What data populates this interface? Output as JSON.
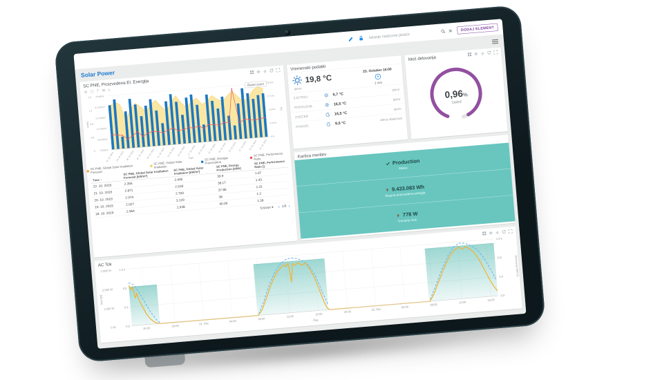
{
  "topbar": {
    "search_placeholder": "Iskanje nadzorne plošče",
    "add_button": "DODAJ ELEMENT"
  },
  "dashboard": {
    "title": "Solar Power"
  },
  "energy_panel": {
    "title": "SC PNE, Proizvedena El. Energija",
    "reset_zoom": "Reset zoom",
    "legend": [
      {
        "label": "SC PNE, Global Solar Irradiation Forecast",
        "color": "#f3a43b"
      },
      {
        "label": "SC PNE, Global Solar Irradiation",
        "color": "#f2cd62"
      },
      {
        "label": "SC PNE, Energija Proizvedena",
        "color": "#1d78c1"
      },
      {
        "label": "SC PNE, Performance Ratio",
        "color": "#e8555a"
      }
    ],
    "table": {
      "columns": [
        "Time ↑",
        "SC PNE, Global Solar Irradiation Forecast [kW/m²]",
        "SC PNE, Global Solar Irradiation [kW/m²]",
        "SC PNE, Energy Production [kWh]",
        "SC PNE, Performance Ratio []"
      ],
      "rows": [
        [
          "22. 10. 2019",
          "2.355",
          "2.405",
          "39.9",
          "1.07"
        ],
        [
          "21. 10. 2019",
          "2.871",
          "2.918",
          "38.17",
          "1.43"
        ],
        [
          "20. 10. 2019",
          "2.974",
          "2.709",
          "37.86",
          "1.31"
        ],
        [
          "19. 10. 2019",
          "2.027",
          "3.129",
          "38",
          "1.2"
        ],
        [
          "18. 10. 2019",
          "2.964",
          "1.938",
          "40.09",
          "1.36"
        ]
      ],
      "page_size": "5/stran",
      "page": "1/6"
    }
  },
  "weather_panel": {
    "title": "Vremenski podatki",
    "current": {
      "temp": "19,8 °C",
      "condition": "jasno",
      "datetime": "23. October 16:00",
      "wind": "1 m/s"
    },
    "forecast": [
      {
        "label": "ZJUTRAJ",
        "icon": "sun",
        "temp": "6,7 °C",
        "condition": "jasno"
      },
      {
        "label": "POPOLDNE",
        "icon": "sun",
        "temp": "16,5 °C",
        "condition": "jasno"
      },
      {
        "label": "ZVEČER",
        "icon": "moon",
        "temp": "16,5 °C",
        "condition": "jasno"
      },
      {
        "label": "PONOČI",
        "icon": "moon",
        "temp": "9,5 °C",
        "condition": "delna oblačnost"
      }
    ]
  },
  "gauge_panel": {
    "title": "Moč delovanja",
    "value": "0,96",
    "unit": "%",
    "label": "Delež",
    "color": "#92509f"
  },
  "stats_panel": {
    "title": "Kartica meritev",
    "bg": "#68c6bf",
    "items": [
      {
        "icon": "check",
        "value": "Production",
        "sub": "Status"
      },
      {
        "icon": "flash",
        "value": "9.433.083 Wh",
        "sub": "Skupna proizvedena energija"
      },
      {
        "icon": "flash",
        "value": "778 W",
        "sub": "Trenutna moč"
      }
    ]
  },
  "ac_panel": {
    "title": "AC Tok"
  },
  "chart_data": [
    {
      "type": "bar",
      "title": "SC PNE, Proizvedena El. Energija",
      "xlabel": "Čas",
      "categories": [
        "01. 10. 2019",
        "02. 10. 2019",
        "03. 10. 2019",
        "04. 10. 2019",
        "05. 10. 2019",
        "06. 10. 2019",
        "07. 10. 2019",
        "08. 10. 2019",
        "09. 10. 2019",
        "10. 10. 2019",
        "11. 10. 2019",
        "12. 10. 2019",
        "13. 10. 2019",
        "14. 10. 2019",
        "15. 10. 2019",
        "16. 10. 2019",
        "17. 10. 2019",
        "18. 10. 2019",
        "19. 10. 2019",
        "20. 10. 2019",
        "21. 10. 2019",
        "22. 10. 2019",
        "23. 10. 2019",
        "24. 10. 2019",
        "25. 10. 2019",
        "26. 10. 2019",
        "27. 10. 2019",
        "28. 10. 2019",
        "29. 10. 2019",
        "30. 10. 2019",
        "31. 10. 2019"
      ],
      "series": [
        {
          "name": "SC PNE, Global Solar Irradiation",
          "type": "area",
          "unit": "kW/m²",
          "color": "#f2cd62",
          "values": [
            3.2,
            3.5,
            3.3,
            2.1,
            2.9,
            3.3,
            3.0,
            2.6,
            3.1,
            3.4,
            2.9,
            2.5,
            3.2,
            3.6,
            3.0,
            2.7,
            3.1,
            3.3,
            2.8,
            3.0,
            3.4,
            3.1,
            2.9,
            3.3,
            3.6,
            3.2,
            2.8,
            3.0,
            3.5,
            3.8,
            3.6
          ]
        },
        {
          "name": "SC PNE, Energija Proizvedena",
          "type": "bar",
          "unit": "kWh",
          "color": "#1d78c1",
          "values": [
            1.32,
            1.48,
            0.36,
            1.1,
            1.46,
            1.28,
            0.92,
            1.22,
            1.4,
            1.05,
            0.66,
            1.3,
            1.5,
            1.26,
            0.86,
            1.36,
            1.44,
            1.12,
            0.52,
            1.4,
            1.2,
            0.96,
            1.3,
            0.72,
            0.42,
            1.06,
            1.5,
            1.34,
            1.16,
            1.26,
            1.3
          ]
        },
        {
          "name": "SC PNE, Performance Ratio",
          "type": "line",
          "unit": "",
          "color": "#e8555a",
          "values": [
            1.0,
            0.95,
            0.9,
            0.62,
            0.8,
            1.05,
            0.72,
            0.9,
            1.0,
            0.95,
            0.85,
            1.0,
            1.1,
            0.9,
            0.95,
            1.05,
            1.0,
            1.1,
            0.92,
            1.15,
            1.1,
            1.05,
            1.2,
            1.15,
            3.4,
            1.1,
            1.3,
            1.25,
            1.2,
            1.25,
            1.3
          ]
        }
      ],
      "axes": {
        "kwh": {
          "label": "[kWh]",
          "max": 1.6,
          "ticks": [
            "0",
            "0.4",
            "0.8",
            "1.2",
            "1.6"
          ]
        },
        "irr": {
          "label": "[kW/m²]",
          "max": 4,
          "ticks": [
            "0 kW/m²",
            "0.8 kW/m²",
            "1.6 kW/m²",
            "2.4 kW/m²",
            "3.2 kW/m²",
            "4 kW/m²"
          ]
        },
        "ratio": {
          "label": "[%]",
          "max": 3.6,
          "ticks": [
            "0 %",
            "0.9 k%",
            "1.8 k%",
            "2.7 k%",
            "3.6 k%"
          ]
        }
      }
    },
    {
      "type": "line",
      "title": "AC Tok",
      "xlabel": "Čas",
      "t_max": 51,
      "w_max": 3000,
      "x_ticks": [
        {
          "t": 2,
          "label": "16:00"
        },
        {
          "t": 6,
          "label": "20:00"
        },
        {
          "t": 10,
          "label": "21. Dec"
        },
        {
          "t": 14,
          "label": "04:00"
        },
        {
          "t": 18,
          "label": "08:00"
        },
        {
          "t": 22,
          "label": "12:00"
        },
        {
          "t": 26,
          "label": "16:00"
        },
        {
          "t": 30,
          "label": "20:00"
        },
        {
          "t": 34,
          "label": "22. Dec"
        },
        {
          "t": 38,
          "label": "04:00"
        },
        {
          "t": 42,
          "label": "08:00"
        },
        {
          "t": 46,
          "label": "12:00"
        },
        {
          "t": 50,
          "label": "16:00"
        }
      ],
      "axes": {
        "left_w": {
          "label": "Moč [W]",
          "ticks": [
            {
              "v": 0,
              "label": "0 W"
            },
            {
              "v": 1000,
              "label": "1.000 W"
            },
            {
              "v": 2000,
              "label": "2.000 W"
            },
            {
              "v": 3000,
              "label": "3.000 W"
            }
          ]
        },
        "left_k": {
          "label": "",
          "ticks": [
            {
              "v": 0,
              "label": "0,0"
            },
            {
              "v": 1000,
              "label": "0,4"
            },
            {
              "v": 2000,
              "label": "0,8"
            },
            {
              "v": 3000,
              "label": "1,2 k"
            }
          ]
        },
        "right": {
          "label": "Obsevanje [W/m²]",
          "ticks": [
            {
              "v": 0,
              "label": "0,0"
            },
            {
              "v": 1000,
              "label": "0,4"
            },
            {
              "v": 2000,
              "label": "0,8"
            },
            {
              "v": 3000,
              "label": "1,2 k"
            }
          ]
        }
      },
      "day_blocks": [
        {
          "from": 0,
          "to": 3.9,
          "top": 2050
        },
        {
          "from": 17.5,
          "to": 27.4,
          "top": 2700
        },
        {
          "from": 41.4,
          "to": 51,
          "top": 2780
        }
      ],
      "power": [
        [
          0,
          2150
        ],
        [
          0.25,
          1900
        ],
        [
          0.5,
          2050
        ],
        [
          0.8,
          1450
        ],
        [
          1.05,
          1700
        ],
        [
          1.3,
          1300
        ],
        [
          1.7,
          950
        ],
        [
          2.1,
          600
        ],
        [
          2.5,
          350
        ],
        [
          3,
          150
        ],
        [
          3.5,
          40
        ],
        [
          3.9,
          0
        ],
        [
          17.6,
          0
        ],
        [
          18.2,
          280
        ],
        [
          18.9,
          850
        ],
        [
          19.7,
          1550
        ],
        [
          20.5,
          2100
        ],
        [
          21.2,
          2400
        ],
        [
          21.7,
          2550
        ],
        [
          22,
          2450
        ],
        [
          22.3,
          2620
        ],
        [
          22.6,
          1600
        ],
        [
          22.9,
          2580
        ],
        [
          23.3,
          2480
        ],
        [
          23.7,
          2600
        ],
        [
          24.2,
          2450
        ],
        [
          24.7,
          2550
        ],
        [
          25.2,
          2250
        ],
        [
          25.8,
          1750
        ],
        [
          26.3,
          1150
        ],
        [
          26.8,
          500
        ],
        [
          27.2,
          120
        ],
        [
          27.5,
          0
        ],
        [
          41.5,
          0
        ],
        [
          42.1,
          320
        ],
        [
          42.9,
          950
        ],
        [
          43.8,
          1650
        ],
        [
          44.7,
          2250
        ],
        [
          45.5,
          2600
        ],
        [
          46.1,
          2720
        ],
        [
          46.6,
          2600
        ],
        [
          47,
          2720
        ],
        [
          47.5,
          2620
        ],
        [
          48.1,
          2420
        ],
        [
          48.7,
          2050
        ],
        [
          49.3,
          1550
        ],
        [
          49.9,
          1000
        ],
        [
          50.5,
          550
        ],
        [
          51,
          260
        ]
      ],
      "irradiance_segments": [
        [
          [
            0,
            2280
          ],
          [
            0.7,
            2150
          ],
          [
            1.4,
            1700
          ],
          [
            2.1,
            1150
          ],
          [
            2.8,
            600
          ],
          [
            3.5,
            200
          ],
          [
            3.9,
            50
          ]
        ],
        [
          [
            17.7,
            80
          ],
          [
            18.5,
            700
          ],
          [
            19.4,
            1500
          ],
          [
            20.3,
            2150
          ],
          [
            21.2,
            2600
          ],
          [
            22,
            2820
          ],
          [
            22.8,
            2880
          ],
          [
            23.6,
            2820
          ],
          [
            24.4,
            2680
          ],
          [
            25.2,
            2380
          ],
          [
            26,
            1800
          ],
          [
            26.7,
            1000
          ],
          [
            27.4,
            250
          ]
        ],
        [
          [
            41.6,
            100
          ],
          [
            42.5,
            800
          ],
          [
            43.5,
            1600
          ],
          [
            44.5,
            2300
          ],
          [
            45.4,
            2750
          ],
          [
            46.2,
            2930
          ],
          [
            47,
            2900
          ],
          [
            47.8,
            2760
          ],
          [
            48.6,
            2520
          ],
          [
            49.4,
            2100
          ],
          [
            50.2,
            1500
          ],
          [
            51,
            800
          ]
        ]
      ]
    }
  ]
}
